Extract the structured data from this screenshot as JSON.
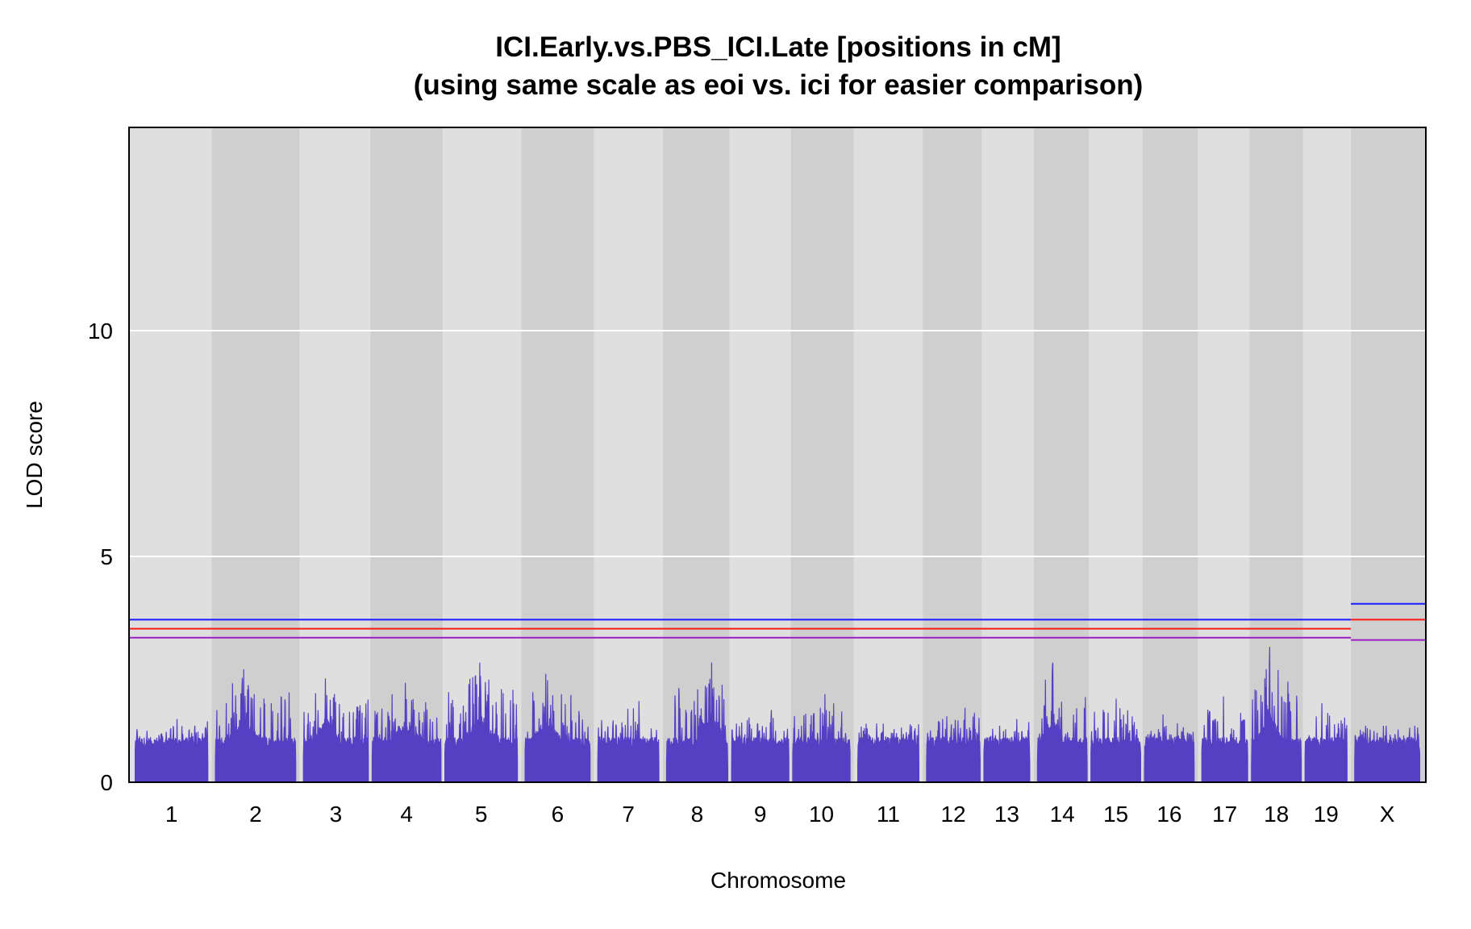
{
  "chart_data": {
    "type": "line",
    "title": "ICI.Early.vs.PBS_ICI.Late [positions in cM]",
    "subtitle": "(using same scale as eoi  vs. ici for easier comparison)",
    "xlabel": "Chromosome",
    "ylabel": "LOD score",
    "ylim": [
      0,
      14.5
    ],
    "yticks": [
      0,
      5,
      10
    ],
    "grid": true,
    "series_color": "#5540c4",
    "chromosomes": [
      "1",
      "2",
      "3",
      "4",
      "5",
      "6",
      "7",
      "8",
      "9",
      "10",
      "11",
      "12",
      "13",
      "14",
      "15",
      "16",
      "17",
      "18",
      "19",
      "X"
    ],
    "chromosome_span_cM": [
      0,
      0.87,
      0.71,
      0.8,
      0.84,
      0.77,
      0.74,
      0.71,
      0.76,
      0.69,
      0.73,
      0.75,
      0.61,
      0.62,
      0.67,
      0.59,
      0.58,
      0.62,
      0.58,
      0.52,
      0.77
    ],
    "chromosome_extent_cM": [
      [
        0,
        95
      ],
      [
        105,
        210
      ],
      [
        220,
        305
      ],
      [
        310,
        400
      ],
      [
        405,
        500
      ],
      [
        510,
        595
      ],
      [
        605,
        685
      ],
      [
        695,
        775
      ],
      [
        780,
        855
      ],
      [
        860,
        935
      ],
      [
        945,
        1025
      ],
      [
        1035,
        1105
      ],
      [
        1110,
        1170
      ],
      [
        1180,
        1245
      ],
      [
        1250,
        1315
      ],
      [
        1320,
        1385
      ],
      [
        1395,
        1455
      ],
      [
        1460,
        1525
      ],
      [
        1530,
        1585
      ],
      [
        1595,
        1680
      ]
    ],
    "peaks": [
      {
        "chr": "1",
        "max_lod": 1.4
      },
      {
        "chr": "2",
        "max_lod": 2.5
      },
      {
        "chr": "3",
        "max_lod": 2.3
      },
      {
        "chr": "4",
        "max_lod": 2.2
      },
      {
        "chr": "5",
        "max_lod": 2.65
      },
      {
        "chr": "6",
        "max_lod": 2.4
      },
      {
        "chr": "7",
        "max_lod": 1.8
      },
      {
        "chr": "8",
        "max_lod": 2.65
      },
      {
        "chr": "9",
        "max_lod": 1.6
      },
      {
        "chr": "10",
        "max_lod": 1.95
      },
      {
        "chr": "11",
        "max_lod": 1.3
      },
      {
        "chr": "12",
        "max_lod": 1.65
      },
      {
        "chr": "13",
        "max_lod": 1.4
      },
      {
        "chr": "14",
        "max_lod": 2.65
      },
      {
        "chr": "15",
        "max_lod": 1.85
      },
      {
        "chr": "16",
        "max_lod": 1.5
      },
      {
        "chr": "17",
        "max_lod": 1.9
      },
      {
        "chr": "18",
        "max_lod": 3.0
      },
      {
        "chr": "19",
        "max_lod": 1.75
      },
      {
        "chr": "X",
        "max_lod": 1.25
      }
    ],
    "thresholds": {
      "autosome": [
        {
          "name": "blue",
          "color": "#1a1aff",
          "lod": 3.6
        },
        {
          "name": "red",
          "color": "#ff1a1a",
          "lod": 3.4
        },
        {
          "name": "purple",
          "color": "#9b1fc2",
          "lod": 3.2
        }
      ],
      "x": [
        {
          "name": "blue",
          "color": "#1a1aff",
          "lod": 3.95
        },
        {
          "name": "red",
          "color": "#ff1a1a",
          "lod": 3.6
        },
        {
          "name": "purple",
          "color": "#9b1fc2",
          "lod": 3.15
        }
      ]
    }
  }
}
